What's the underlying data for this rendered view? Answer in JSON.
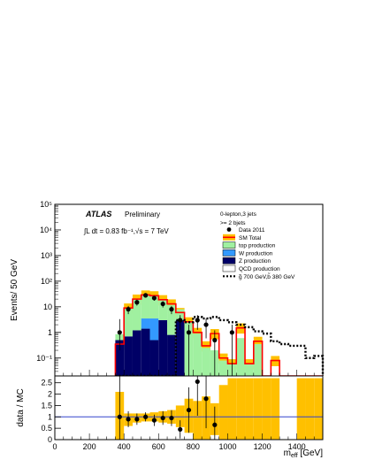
{
  "chart_data": [
    {
      "type": "bar",
      "panel": "main",
      "ylabel": "Events/ 50 GeV",
      "yscale": "log",
      "ylim": [
        0.02,
        100000
      ],
      "xlim": [
        0,
        1550
      ],
      "bin_width": 50,
      "y_tick_labels": [
        "10⁻¹",
        "1",
        "10",
        "10²",
        "10³",
        "10⁴",
        "10⁵"
      ],
      "texts": {
        "atlas": "ATLAS",
        "preliminary": "Preliminary",
        "lumi": "∫L dt = 0.83 fb⁻¹,√s = 7 TeV",
        "channel": "0-lepton,3 jets",
        "bjets": ">= 2 bjets"
      },
      "legend": [
        {
          "name": "Data 2011",
          "style": "marker",
          "color": "#000000"
        },
        {
          "name": "SM Total",
          "style": "line",
          "color": "#ff0000",
          "fill": "#ffc000"
        },
        {
          "name": "top production",
          "style": "box",
          "color": "#a0f0a0"
        },
        {
          "name": "W production",
          "style": "box",
          "color": "#3399ff"
        },
        {
          "name": "Z production",
          "style": "box",
          "color": "#000066"
        },
        {
          "name": "QCD production",
          "style": "box",
          "color": "#ffffff"
        },
        {
          "name": "g̃ 700 GeV,b̃ 380 GeV",
          "style": "dotted",
          "color": "#000000"
        }
      ],
      "legend_placement": "top-right",
      "x_bins_low": [
        350,
        400,
        450,
        500,
        550,
        600,
        650,
        700,
        750,
        800,
        850,
        900,
        950,
        1000,
        1050,
        1100,
        1150,
        1200,
        1250,
        1300,
        1350,
        1400,
        1450,
        1500
      ],
      "series": [
        {
          "name": "Z production",
          "values": [
            0.5,
            0.7,
            1.2,
            1.4,
            0.5,
            3.0,
            0.8,
            3.0,
            0.02,
            0.02,
            0.02,
            0.02,
            0.02,
            0.02,
            0.02,
            0.02,
            0.02,
            0.02,
            0.02,
            0.02,
            0.02,
            0.02,
            0.02,
            0.02
          ]
        },
        {
          "name": "W production",
          "values": [
            0.0,
            0.0,
            0.0,
            2.1,
            3.0,
            0.0,
            0.0,
            0.0,
            0.0,
            0.0,
            0.0,
            0.0,
            0.0,
            0.0,
            0.0,
            0.0,
            0.0,
            0.0,
            0.0,
            0.0,
            0.0,
            0.0,
            0.0,
            0.0
          ]
        },
        {
          "name": "top production",
          "values": [
            0.35,
            8.0,
            18.0,
            26.0,
            24.0,
            16.0,
            11.0,
            5.0,
            2.5,
            0.9,
            0.25,
            0.2,
            0.08,
            0.06,
            0.6,
            0.06,
            0.35,
            0.02,
            0.02,
            0.02,
            0.02,
            0.02,
            0.02,
            0.02
          ]
        },
        {
          "name": "SM Total",
          "values": [
            0.35,
            9.0,
            20.0,
            29.0,
            27.0,
            19.0,
            13.0,
            6.0,
            2.6,
            1.0,
            0.3,
            0.9,
            0.1,
            0.06,
            1.5,
            0.06,
            0.45,
            0.02,
            0.08,
            0.02,
            0.02,
            0.02,
            0.02,
            0.02
          ]
        },
        {
          "name": "g̃ 700 GeV,b̃ 380 GeV",
          "values": [
            0.02,
            0.02,
            0.02,
            0.02,
            0.02,
            0.02,
            0.02,
            3.0,
            2.5,
            4.0,
            3.5,
            4.0,
            3.0,
            2.5,
            2.0,
            1.6,
            1.1,
            0.9,
            0.45,
            0.35,
            0.3,
            0.3,
            0.1,
            0.12
          ]
        }
      ],
      "data_points": [
        {
          "x": 375,
          "y": 1.0,
          "err_low": 0.8,
          "err_high": 2.3
        },
        {
          "x": 425,
          "y": 8.0
        },
        {
          "x": 475,
          "y": 15.0
        },
        {
          "x": 525,
          "y": 28.0
        },
        {
          "x": 575,
          "y": 22.0
        },
        {
          "x": 625,
          "y": 13.0
        },
        {
          "x": 675,
          "y": 8.0
        },
        {
          "x": 725,
          "y": 3.0
        },
        {
          "x": 775,
          "y": 1.0
        },
        {
          "x": 825,
          "y": 3.0
        },
        {
          "x": 875,
          "y": 2.0
        },
        {
          "x": 925,
          "y": 0.5
        },
        {
          "x": 1025,
          "y": 1.0
        }
      ]
    },
    {
      "type": "scatter",
      "panel": "ratio",
      "ylabel": "data / MC",
      "xlabel": "m_eff [GeV]",
      "xlim": [
        0,
        1550
      ],
      "ylim": [
        0,
        2.8
      ],
      "y_ticks": [
        0,
        0.5,
        1,
        1.5,
        2,
        2.5
      ],
      "x_ticks": [
        0,
        200,
        400,
        600,
        800,
        1000,
        1200,
        1400
      ],
      "reference_line": 1.0,
      "points": [
        {
          "x": 375,
          "y": 1.0,
          "err": 2.7
        },
        {
          "x": 425,
          "y": 0.9,
          "err": 0.35
        },
        {
          "x": 475,
          "y": 0.9,
          "err": 0.25
        },
        {
          "x": 525,
          "y": 1.0,
          "err": 0.2
        },
        {
          "x": 575,
          "y": 0.85,
          "err": 0.25
        },
        {
          "x": 625,
          "y": 0.95,
          "err": 0.3
        },
        {
          "x": 675,
          "y": 0.95,
          "err": 0.35
        },
        {
          "x": 725,
          "y": 0.45,
          "err": 0.4
        },
        {
          "x": 775,
          "y": 1.3,
          "err": 1.0
        },
        {
          "x": 825,
          "y": 2.55,
          "err": 1.5
        },
        {
          "x": 875,
          "y": 1.8,
          "err": 1.3
        },
        {
          "x": 925,
          "y": 0.65,
          "err": 0.8
        }
      ],
      "uncertainty_bins": [
        {
          "x": 375,
          "low": 0.0,
          "high": 2.1
        },
        {
          "x": 425,
          "low": 0.6,
          "high": 1.15
        },
        {
          "x": 475,
          "low": 0.75,
          "high": 1.15
        },
        {
          "x": 525,
          "low": 0.8,
          "high": 1.15
        },
        {
          "x": 575,
          "low": 0.8,
          "high": 1.2
        },
        {
          "x": 625,
          "low": 0.75,
          "high": 1.25
        },
        {
          "x": 675,
          "low": 0.7,
          "high": 1.3
        },
        {
          "x": 725,
          "low": 0.55,
          "high": 1.5
        },
        {
          "x": 775,
          "low": 0.3,
          "high": 1.8
        },
        {
          "x": 825,
          "low": 0.0,
          "high": 1.7
        },
        {
          "x": 875,
          "low": 0.0,
          "high": 1.9
        },
        {
          "x": 925,
          "low": 0.2,
          "high": 1.6
        },
        {
          "x": 975,
          "low": 0.0,
          "high": 2.4
        },
        {
          "x": 1025,
          "low": 0.0,
          "high": 2.7
        },
        {
          "x": 1075,
          "low": 0.0,
          "high": 2.7
        },
        {
          "x": 1125,
          "low": 0.0,
          "high": 2.7
        },
        {
          "x": 1175,
          "low": 0.0,
          "high": 2.7
        },
        {
          "x": 1225,
          "low": 0.0,
          "high": 2.7
        },
        {
          "x": 1275,
          "low": 0.0,
          "high": 2.7
        },
        {
          "x": 1425,
          "low": 0.0,
          "high": 2.7
        },
        {
          "x": 1475,
          "low": 0.0,
          "high": 2.7
        },
        {
          "x": 1525,
          "low": 0.0,
          "high": 2.7
        }
      ]
    }
  ]
}
